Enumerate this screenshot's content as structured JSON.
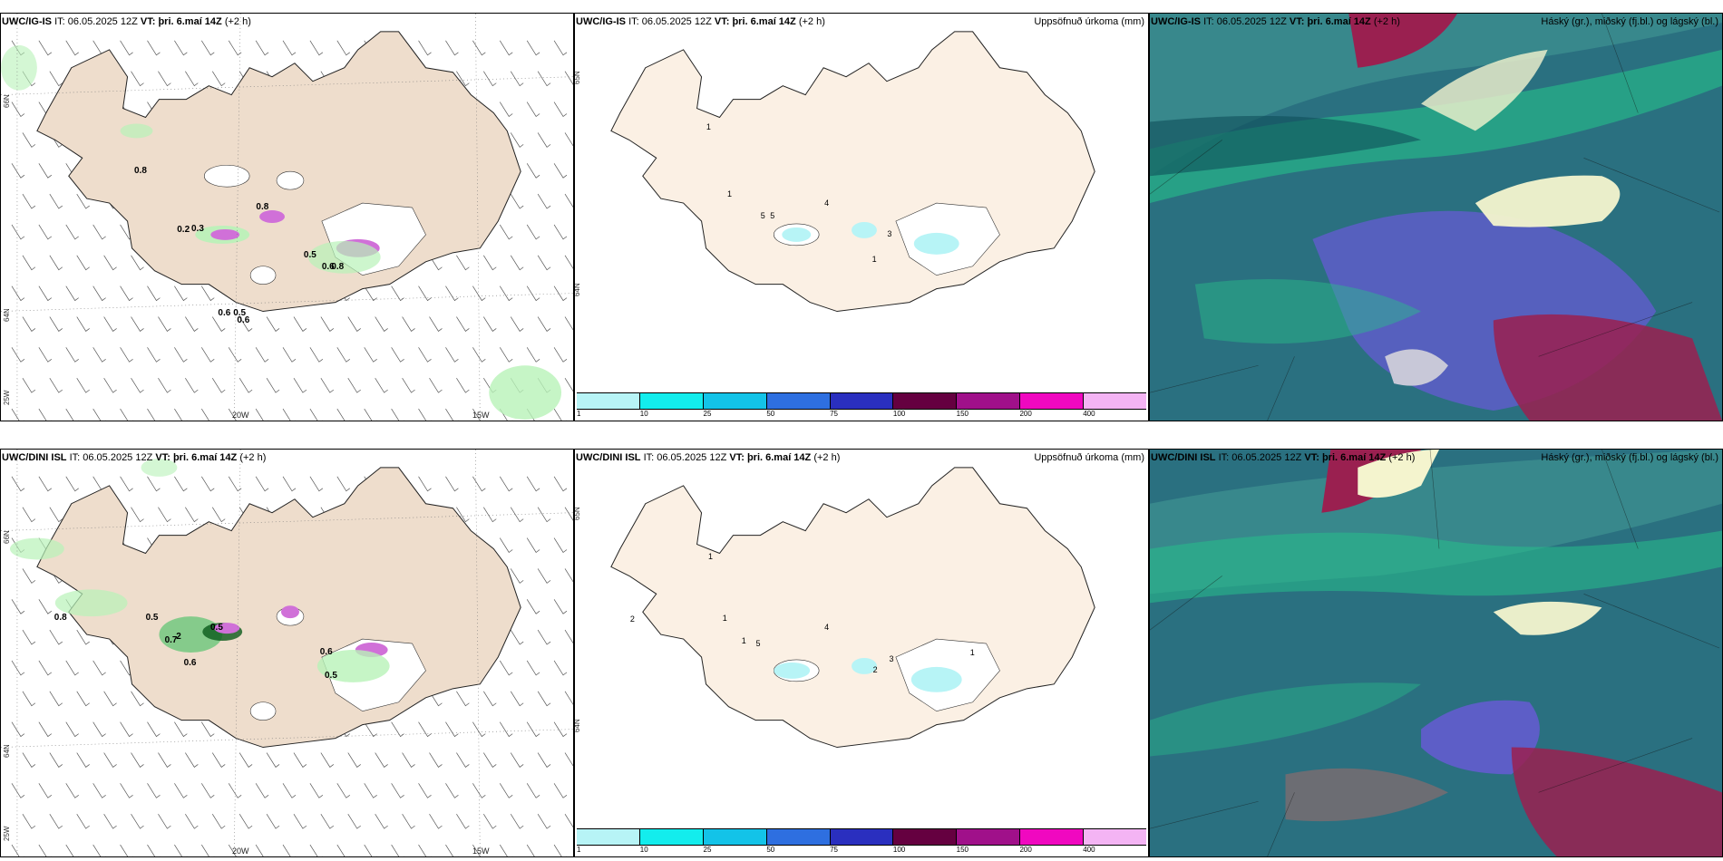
{
  "colors": {
    "land": "#eeddcc",
    "land_light": "#fbf0e4",
    "precip_light": "#b8f2b8",
    "precip_mid": "#3fbf5f",
    "precip_dark": "#0a5a1a",
    "magenta": "#d070d8",
    "cloud_base": "#2a7080",
    "cloud_teal": "#27c08a",
    "cloud_purple": "#6a5ad8",
    "cloud_red": "#9a2050",
    "cloud_white": "#f4f4ce"
  },
  "legend": {
    "ticks": [
      "1",
      "10",
      "25",
      "50",
      "75",
      "100",
      "150",
      "200",
      "400"
    ],
    "colors": [
      "#b7f4f6",
      "#13eded",
      "#13c3e8",
      "#2e6fe0",
      "#2a2fbf",
      "#650040",
      "#a0108a",
      "#f008c0",
      "#f4b4f4"
    ]
  },
  "rows": [
    {
      "model": "UWC/IG-IS",
      "labels": {
        "wind": [
          {
            "t": "0.8",
            "x": 140,
            "y": 160
          },
          {
            "t": "0.2",
            "x": 185,
            "y": 225
          },
          {
            "t": "0.3",
            "x": 200,
            "y": 224
          },
          {
            "t": "0.8",
            "x": 268,
            "y": 200
          },
          {
            "t": "0.5",
            "x": 318,
            "y": 253
          },
          {
            "t": "0.6",
            "x": 337,
            "y": 266
          },
          {
            "t": "0.8",
            "x": 347,
            "y": 266
          },
          {
            "t": "0.6",
            "x": 228,
            "y": 317
          },
          {
            "t": "0.5",
            "x": 244,
            "y": 317
          },
          {
            "t": "0.6",
            "x": 248,
            "y": 325
          }
        ],
        "precip": [
          {
            "t": "1",
            "x": 138,
            "y": 112
          },
          {
            "t": "1",
            "x": 160,
            "y": 186
          },
          {
            "t": "5",
            "x": 195,
            "y": 210
          },
          {
            "t": "5",
            "x": 205,
            "y": 210
          },
          {
            "t": "4",
            "x": 262,
            "y": 196
          },
          {
            "t": "3",
            "x": 328,
            "y": 230
          },
          {
            "t": "1",
            "x": 312,
            "y": 258
          }
        ]
      }
    },
    {
      "model": "UWC/DINI ISL",
      "labels": {
        "wind": [
          {
            "t": "0.8",
            "x": 56,
            "y": 172
          },
          {
            "t": "0.5",
            "x": 152,
            "y": 172
          },
          {
            "t": "0.7",
            "x": 172,
            "y": 197
          },
          {
            "t": "2",
            "x": 184,
            "y": 193
          },
          {
            "t": "0.5",
            "x": 220,
            "y": 183
          },
          {
            "t": "0.6",
            "x": 192,
            "y": 222
          },
          {
            "t": "0.6",
            "x": 335,
            "y": 210
          },
          {
            "t": "0.5",
            "x": 340,
            "y": 236
          }
        ],
        "precip": [
          {
            "t": "1",
            "x": 140,
            "y": 105
          },
          {
            "t": "1",
            "x": 155,
            "y": 173
          },
          {
            "t": "2",
            "x": 58,
            "y": 174
          },
          {
            "t": "1",
            "x": 175,
            "y": 198
          },
          {
            "t": "5",
            "x": 190,
            "y": 201
          },
          {
            "t": "4",
            "x": 262,
            "y": 183
          },
          {
            "t": "3",
            "x": 330,
            "y": 218
          },
          {
            "t": "2",
            "x": 313,
            "y": 230
          },
          {
            "t": "1",
            "x": 415,
            "y": 211
          }
        ]
      }
    }
  ],
  "common": {
    "it_label": "IT:",
    "it_value": "06.05.2025 12Z",
    "vt_label": "VT:",
    "vt_value": "þri. 6.maí 14Z",
    "lead": "(+2 h)",
    "precip_title": "Uppsöfnuð úrkoma (mm)",
    "cloud_title": "Háský (gr.), miðský (fj.bl.) og lágský (bl.)",
    "lat_66": "66N",
    "lat_64": "64N",
    "lon_25": "25W",
    "lon_20": "20W",
    "lon_15": "15W",
    "lat_65": "65N",
    "lat_64b": "64N"
  }
}
